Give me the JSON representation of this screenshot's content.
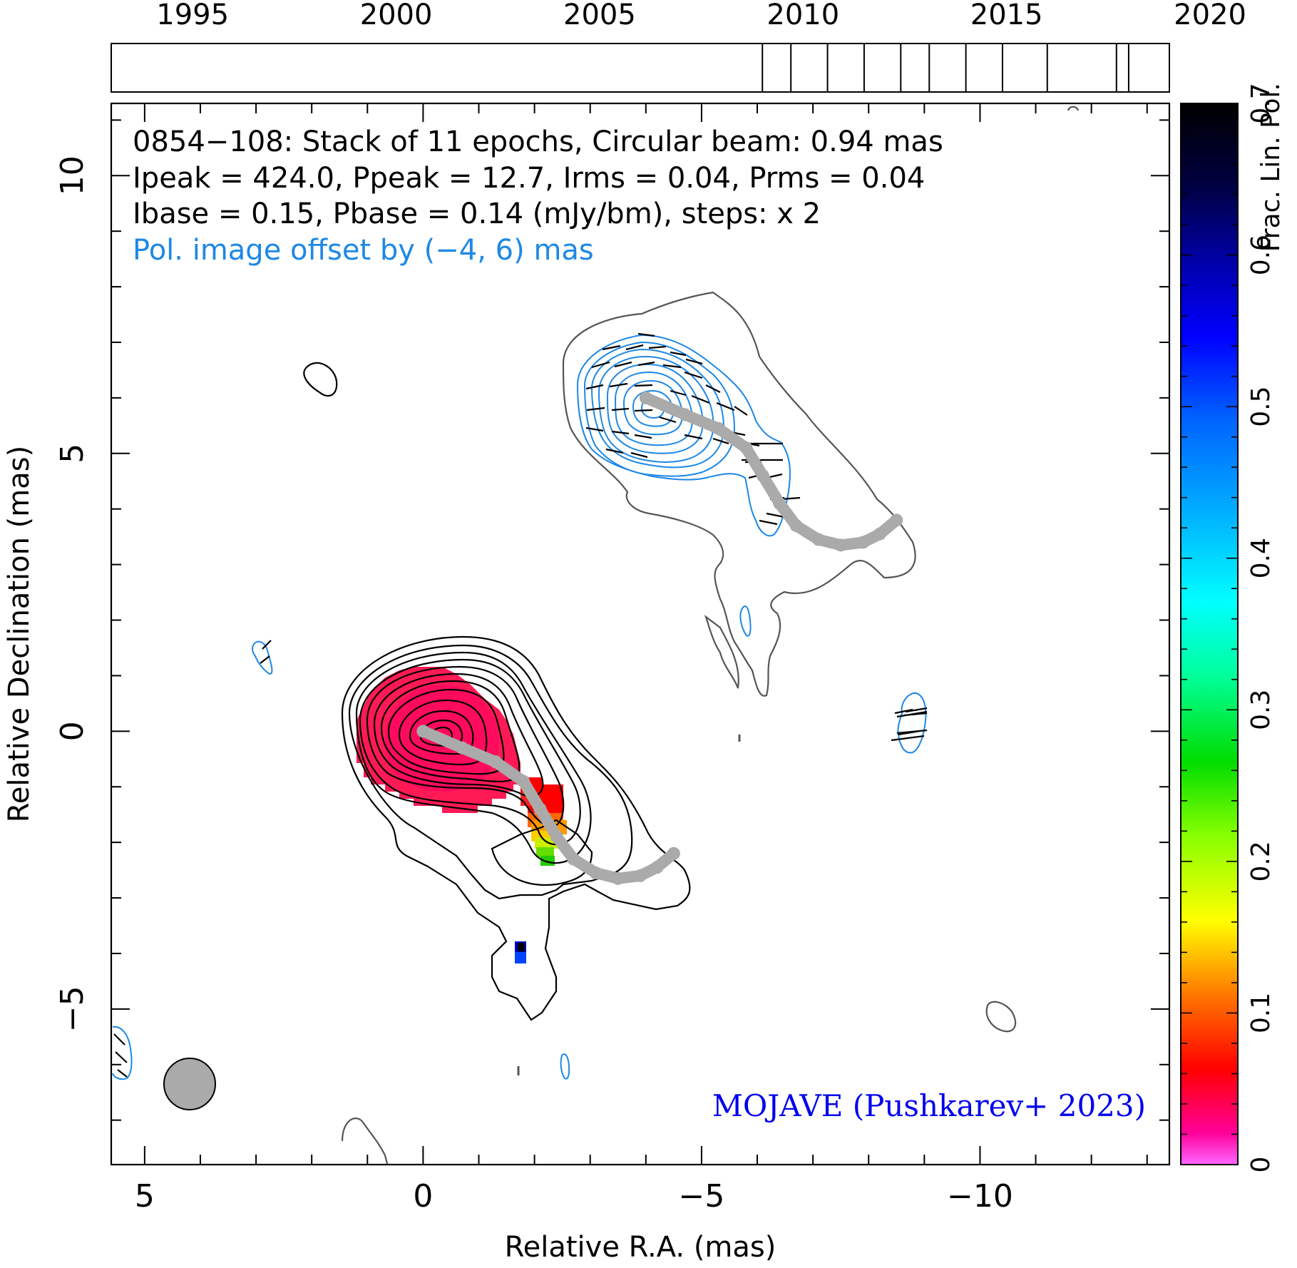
{
  "chart_data": {
    "type": "contour",
    "header": {
      "line1": "0854−108: Stack of 11 epochs, Circular beam: 0.94 mas",
      "line2": "Ipeak = 424.0, Ppeak = 12.7, Irms = 0.04, Prms = 0.04",
      "line3": "Ibase = 0.15, Pbase = 0.14 (mJy/bm), steps: x 2",
      "line4": "Pol. image offset by (−4, 6) mas"
    },
    "credit": "MOJAVE (Pushkarev+ 2023)",
    "xlabel": "Relative R.A. (mas)",
    "ylabel": "Relative Declination (mas)",
    "colorbar_label": "Frac. Lin. Pol.",
    "xlim": [
      5.6,
      -13.4
    ],
    "ylim": [
      -7.8,
      11.3
    ],
    "x_ticks": [
      "5",
      "0",
      "−5",
      "−10"
    ],
    "y_ticks": [
      "−5",
      "0",
      "5",
      "10"
    ],
    "colorbar_ticks": [
      "0",
      "0.1",
      "0.2",
      "0.3",
      "0.4",
      "0.5",
      "0.6",
      "0.7"
    ],
    "colorbar_range": [
      0,
      0.7
    ],
    "timeline_ticks": [
      "1995",
      "2000",
      "2005",
      "2010",
      "2015",
      "2020"
    ],
    "timeline_range": [
      1993,
      2019
    ],
    "epochs": [
      2009.0,
      2009.7,
      2010.6,
      2011.5,
      2012.4,
      2013.1,
      2014.0,
      2014.9,
      2016.0,
      2017.7,
      2018.0
    ],
    "beam_fwhm_mas": 0.94,
    "ridge_line": [
      [
        0,
        0
      ],
      [
        -0.7,
        -0.3
      ],
      [
        -1.3,
        -0.55
      ],
      [
        -1.8,
        -0.9
      ],
      [
        -2.1,
        -1.4
      ],
      [
        -2.4,
        -1.9
      ],
      [
        -2.7,
        -2.3
      ],
      [
        -3.1,
        -2.55
      ],
      [
        -3.5,
        -2.65
      ],
      [
        -3.9,
        -2.6
      ],
      [
        -4.2,
        -2.45
      ],
      [
        -4.5,
        -2.2
      ]
    ],
    "pol_offset_mas": [
      -4,
      6
    ],
    "colors": {
      "stokes_i_contour": "#000000",
      "pol_contour": "#1e88e5",
      "ridge_line": "#aaaaaa",
      "credit_text": "#0000ee",
      "pol_label_text": "#1e88e5"
    }
  }
}
